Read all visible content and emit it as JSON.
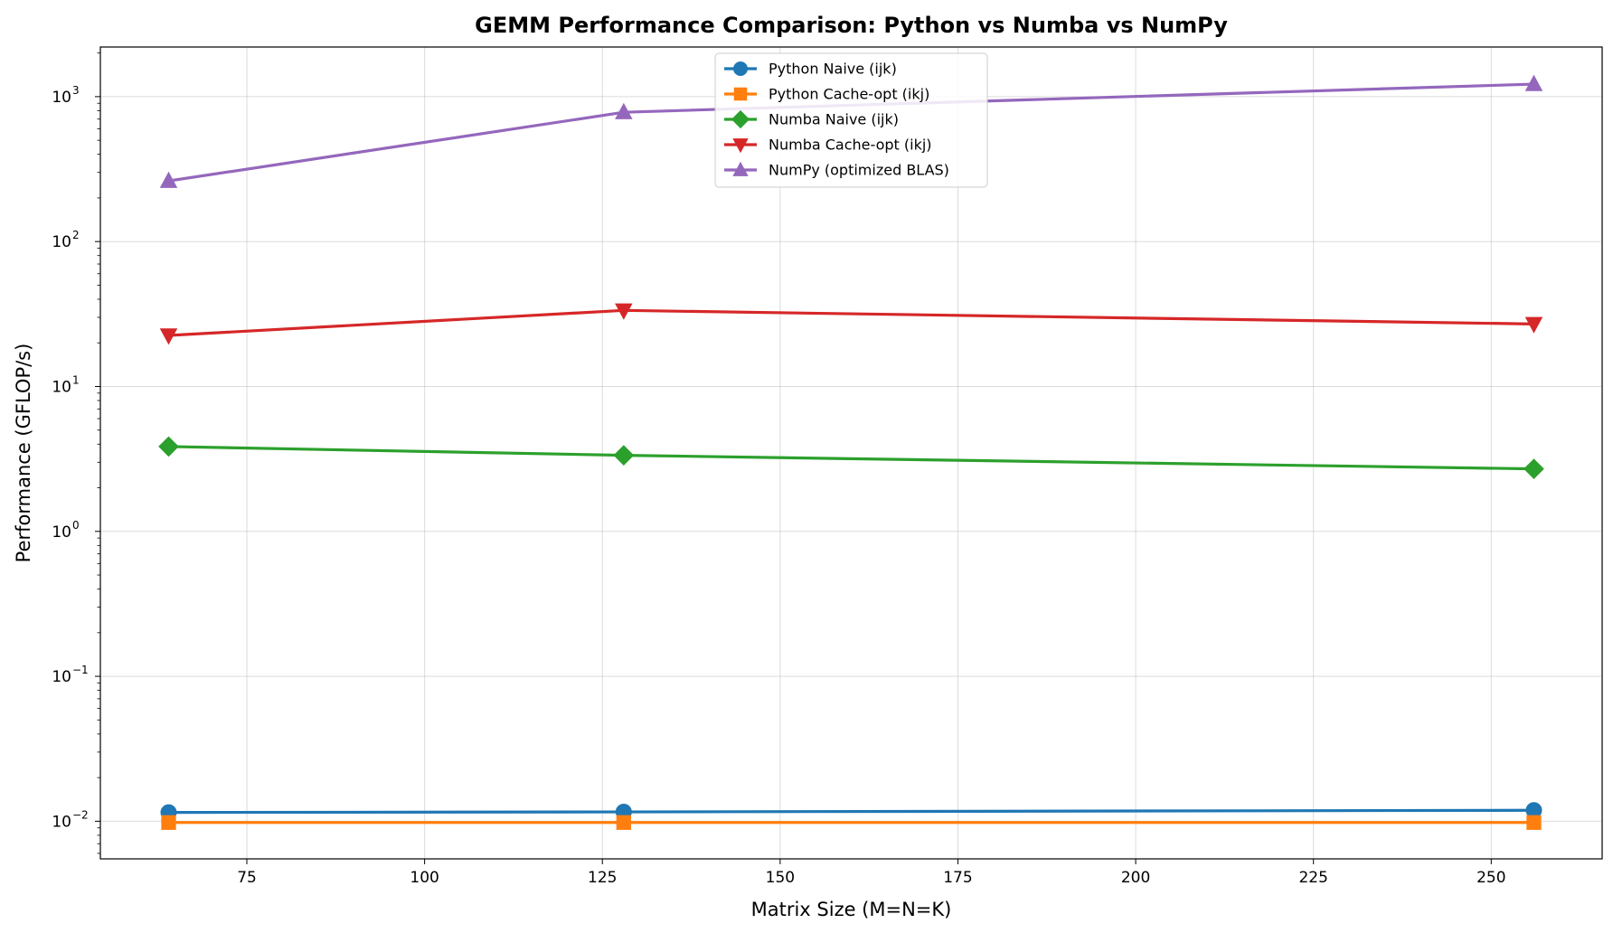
{
  "chart_data": {
    "type": "line",
    "title": "GEMM Performance Comparison: Python vs Numba vs NumPy",
    "xlabel": "Matrix Size (M=N=K)",
    "ylabel": "Performance (GFLOP/s)",
    "x": [
      64,
      128,
      256
    ],
    "xlim": [
      54.4,
      265.6
    ],
    "ylim": [
      0.0055,
      2200
    ],
    "yscale": "log",
    "grid": true,
    "legend_position": "top-center",
    "x_ticks": [
      {
        "value": 75,
        "label": "75"
      },
      {
        "value": 100,
        "label": "100"
      },
      {
        "value": 125,
        "label": "125"
      },
      {
        "value": 150,
        "label": "150"
      },
      {
        "value": 175,
        "label": "175"
      },
      {
        "value": 200,
        "label": "200"
      },
      {
        "value": 225,
        "label": "225"
      },
      {
        "value": 250,
        "label": "250"
      }
    ],
    "y_ticks": [
      {
        "value": 0.01,
        "base": "10",
        "exp": "−2"
      },
      {
        "value": 0.1,
        "base": "10",
        "exp": "−1"
      },
      {
        "value": 1,
        "base": "10",
        "exp": "0"
      },
      {
        "value": 10,
        "base": "10",
        "exp": "1"
      },
      {
        "value": 100,
        "base": "10",
        "exp": "2"
      },
      {
        "value": 1000,
        "base": "10",
        "exp": "3"
      }
    ],
    "series": [
      {
        "name": "Python Naive (ijk)",
        "color": "#1f77b4",
        "marker": "circle",
        "values": [
          0.0115,
          0.0116,
          0.0119
        ]
      },
      {
        "name": "Python Cache-opt (ikj)",
        "color": "#ff7f0e",
        "marker": "square",
        "values": [
          0.0098,
          0.0098,
          0.0098
        ]
      },
      {
        "name": "Numba Naive (ijk)",
        "color": "#2ca02c",
        "marker": "diamond",
        "values": [
          3.85,
          3.35,
          2.7
        ]
      },
      {
        "name": "Numba Cache-opt (ikj)",
        "color": "#d62728",
        "marker": "triangle-down",
        "values": [
          22.5,
          33.5,
          27.0
        ]
      },
      {
        "name": "NumPy (optimized BLAS)",
        "color": "#9467bd",
        "marker": "triangle-up",
        "values": [
          262,
          780,
          1220
        ]
      }
    ]
  }
}
